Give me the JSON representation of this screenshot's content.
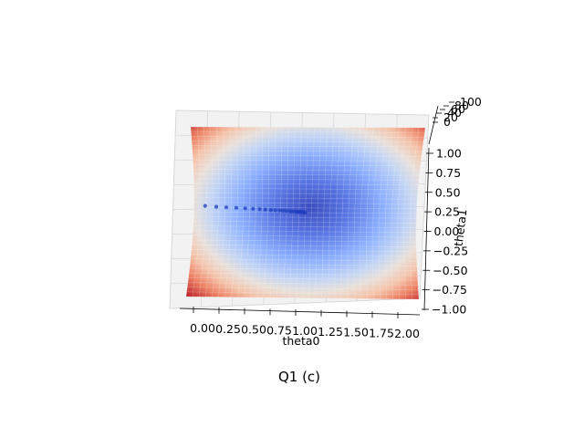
{
  "chart_data": {
    "type": "surface",
    "title": "Q1 (c)",
    "xlabel": "theta0",
    "ylabel": "theta1",
    "zlabel": "",
    "xlim": [
      0.0,
      2.0
    ],
    "ylim": [
      -1.0,
      1.0
    ],
    "zlim": [
      0,
      100
    ],
    "x_ticks": [
      "0.00",
      "0.25",
      "0.50",
      "0.75",
      "1.00",
      "1.25",
      "1.50",
      "1.75",
      "2.00"
    ],
    "y_ticks": [
      "-1.00",
      "-0.75",
      "-0.50",
      "-0.25",
      "0.00",
      "0.25",
      "0.50",
      "0.75",
      "1.00"
    ],
    "z_ticks": [
      "0",
      "20",
      "40",
      "60",
      "80",
      "100"
    ],
    "surface": {
      "colormap": "coolwarm",
      "minimum": {
        "theta0": 1.0,
        "theta1": 0.0
      },
      "shape": "quadratic bowl"
    },
    "descent_path": {
      "theta0": [
        0.1,
        0.2,
        0.29,
        0.38,
        0.46,
        0.53,
        0.59,
        0.64,
        0.69,
        0.73,
        0.77,
        0.8,
        0.83,
        0.86,
        0.88,
        0.9,
        0.92,
        0.93,
        0.94,
        0.95,
        0.96,
        0.97,
        0.98,
        0.985,
        0.99,
        0.995,
        1.0
      ],
      "theta1": [
        0.07,
        0.06,
        0.055,
        0.05,
        0.045,
        0.04,
        0.036,
        0.032,
        0.028,
        0.025,
        0.022,
        0.02,
        0.018,
        0.016,
        0.014,
        0.012,
        0.011,
        0.01,
        0.009,
        0.008,
        0.007,
        0.006,
        0.005,
        0.004,
        0.003,
        0.002,
        0.002
      ],
      "color": "#1f3fbf"
    },
    "grid": true,
    "pane_color": "#f2f2f2"
  }
}
